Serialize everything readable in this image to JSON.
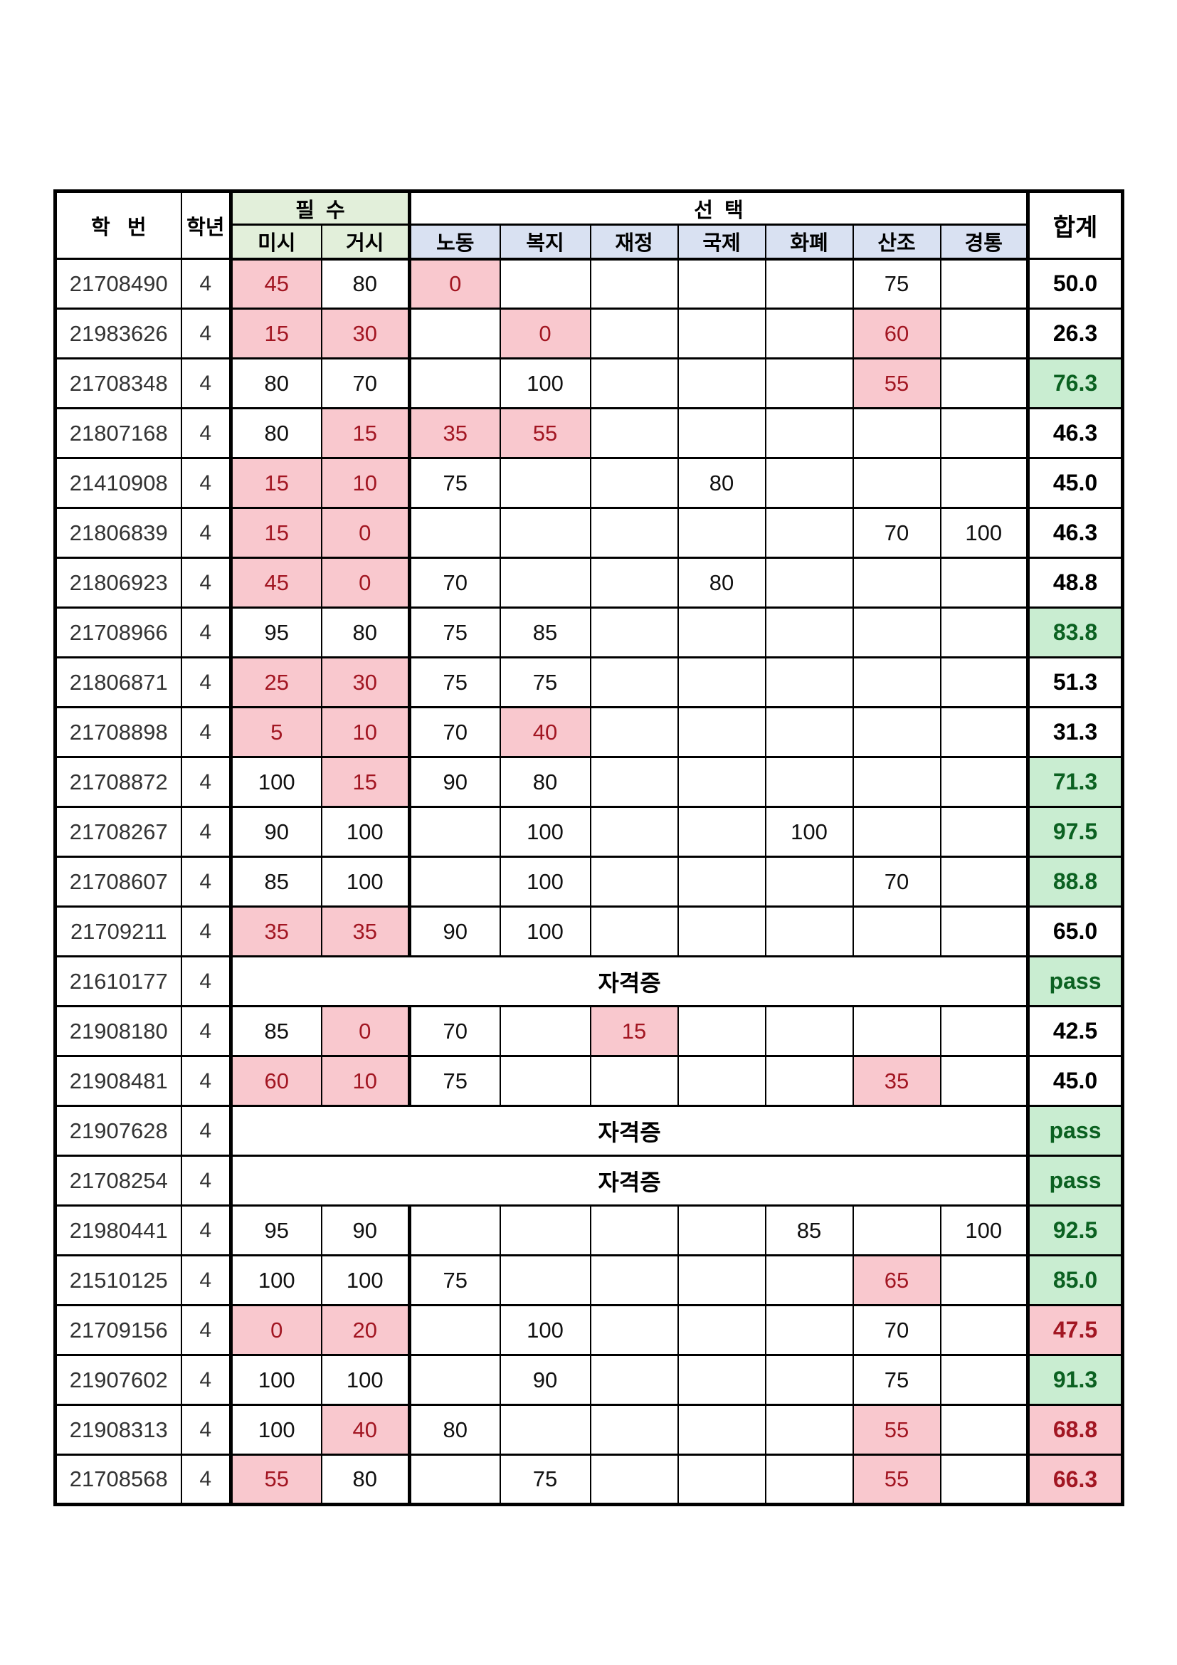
{
  "header": {
    "student_id": "학   번",
    "year": "학년",
    "required_group": "필  수",
    "elective_group": "선  택",
    "total": "합계",
    "required_cols": [
      "미시",
      "거시"
    ],
    "elective_cols": [
      "노동",
      "복지",
      "재정",
      "국제",
      "화폐",
      "산조",
      "경통"
    ]
  },
  "labels": {
    "certificate": "자격증",
    "pass": "pass"
  },
  "colors": {
    "header_required_green": "#E2EFDA",
    "header_elective_blue": "#D9E1F2",
    "fail_cell_bg": "#F9C8CE",
    "fail_cell_text": "#A21622",
    "good_total_bg": "#C9EDD1",
    "good_total_text": "#0B6121",
    "border": "#000000"
  },
  "rows": [
    {
      "id": "21708490",
      "year": "4",
      "scores": [
        {
          "v": "45",
          "bad": true
        },
        {
          "v": "80"
        },
        {
          "v": "0",
          "bad": true
        },
        null,
        null,
        null,
        null,
        {
          "v": "75"
        },
        null
      ],
      "total": {
        "v": "50.0",
        "style": "normal"
      }
    },
    {
      "id": "21983626",
      "year": "4",
      "scores": [
        {
          "v": "15",
          "bad": true
        },
        {
          "v": "30",
          "bad": true
        },
        null,
        {
          "v": "0",
          "bad": true
        },
        null,
        null,
        null,
        {
          "v": "60",
          "bad": true
        },
        null
      ],
      "total": {
        "v": "26.3",
        "style": "normal"
      }
    },
    {
      "id": "21708348",
      "year": "4",
      "scores": [
        {
          "v": "80"
        },
        {
          "v": "70"
        },
        null,
        {
          "v": "100"
        },
        null,
        null,
        null,
        {
          "v": "55",
          "bad": true
        },
        null
      ],
      "total": {
        "v": "76.3",
        "style": "good"
      }
    },
    {
      "id": "21807168",
      "year": "4",
      "scores": [
        {
          "v": "80"
        },
        {
          "v": "15",
          "bad": true
        },
        {
          "v": "35",
          "bad": true
        },
        {
          "v": "55",
          "bad": true
        },
        null,
        null,
        null,
        null,
        null
      ],
      "total": {
        "v": "46.3",
        "style": "normal"
      }
    },
    {
      "id": "21410908",
      "year": "4",
      "scores": [
        {
          "v": "15",
          "bad": true
        },
        {
          "v": "10",
          "bad": true
        },
        {
          "v": "75"
        },
        null,
        null,
        {
          "v": "80"
        },
        null,
        null,
        null
      ],
      "total": {
        "v": "45.0",
        "style": "normal"
      }
    },
    {
      "id": "21806839",
      "year": "4",
      "scores": [
        {
          "v": "15",
          "bad": true
        },
        {
          "v": "0",
          "bad": true
        },
        null,
        null,
        null,
        null,
        null,
        {
          "v": "70"
        },
        {
          "v": "100"
        }
      ],
      "total": {
        "v": "46.3",
        "style": "normal"
      }
    },
    {
      "id": "21806923",
      "year": "4",
      "scores": [
        {
          "v": "45",
          "bad": true
        },
        {
          "v": "0",
          "bad": true
        },
        {
          "v": "70"
        },
        null,
        null,
        {
          "v": "80"
        },
        null,
        null,
        null
      ],
      "total": {
        "v": "48.8",
        "style": "normal"
      }
    },
    {
      "id": "21708966",
      "year": "4",
      "scores": [
        {
          "v": "95"
        },
        {
          "v": "80"
        },
        {
          "v": "75"
        },
        {
          "v": "85"
        },
        null,
        null,
        null,
        null,
        null
      ],
      "total": {
        "v": "83.8",
        "style": "good"
      }
    },
    {
      "id": "21806871",
      "year": "4",
      "scores": [
        {
          "v": "25",
          "bad": true
        },
        {
          "v": "30",
          "bad": true
        },
        {
          "v": "75"
        },
        {
          "v": "75"
        },
        null,
        null,
        null,
        null,
        null
      ],
      "total": {
        "v": "51.3",
        "style": "normal"
      }
    },
    {
      "id": "21708898",
      "year": "4",
      "scores": [
        {
          "v": "5",
          "bad": true
        },
        {
          "v": "10",
          "bad": true
        },
        {
          "v": "70"
        },
        {
          "v": "40",
          "bad": true
        },
        null,
        null,
        null,
        null,
        null
      ],
      "total": {
        "v": "31.3",
        "style": "normal"
      }
    },
    {
      "id": "21708872",
      "year": "4",
      "scores": [
        {
          "v": "100"
        },
        {
          "v": "15",
          "bad": true
        },
        {
          "v": "90"
        },
        {
          "v": "80"
        },
        null,
        null,
        null,
        null,
        null
      ],
      "total": {
        "v": "71.3",
        "style": "good"
      }
    },
    {
      "id": "21708267",
      "year": "4",
      "scores": [
        {
          "v": "90"
        },
        {
          "v": "100"
        },
        null,
        {
          "v": "100"
        },
        null,
        null,
        {
          "v": "100"
        },
        null,
        null
      ],
      "total": {
        "v": "97.5",
        "style": "good"
      }
    },
    {
      "id": "21708607",
      "year": "4",
      "scores": [
        {
          "v": "85"
        },
        {
          "v": "100"
        },
        null,
        {
          "v": "100"
        },
        null,
        null,
        null,
        {
          "v": "70"
        },
        null
      ],
      "total": {
        "v": "88.8",
        "style": "good"
      }
    },
    {
      "id": "21709211",
      "year": "4",
      "scores": [
        {
          "v": "35",
          "bad": true
        },
        {
          "v": "35",
          "bad": true
        },
        {
          "v": "90"
        },
        {
          "v": "100"
        },
        null,
        null,
        null,
        null,
        null
      ],
      "total": {
        "v": "65.0",
        "style": "normal"
      }
    },
    {
      "id": "21610177",
      "year": "4",
      "cert": true,
      "total": {
        "v": "pass",
        "style": "good"
      }
    },
    {
      "id": "21908180",
      "year": "4",
      "scores": [
        {
          "v": "85"
        },
        {
          "v": "0",
          "bad": true
        },
        {
          "v": "70"
        },
        null,
        {
          "v": "15",
          "bad": true
        },
        null,
        null,
        null,
        null
      ],
      "total": {
        "v": "42.5",
        "style": "normal"
      }
    },
    {
      "id": "21908481",
      "year": "4",
      "scores": [
        {
          "v": "60",
          "bad": true
        },
        {
          "v": "10",
          "bad": true
        },
        {
          "v": "75"
        },
        null,
        null,
        null,
        null,
        {
          "v": "35",
          "bad": true
        },
        null
      ],
      "total": {
        "v": "45.0",
        "style": "normal"
      }
    },
    {
      "id": "21907628",
      "year": "4",
      "cert": true,
      "total": {
        "v": "pass",
        "style": "good"
      }
    },
    {
      "id": "21708254",
      "year": "4",
      "cert": true,
      "total": {
        "v": "pass",
        "style": "good"
      }
    },
    {
      "id": "21980441",
      "year": "4",
      "scores": [
        {
          "v": "95"
        },
        {
          "v": "90"
        },
        null,
        null,
        null,
        null,
        {
          "v": "85"
        },
        null,
        {
          "v": "100"
        }
      ],
      "total": {
        "v": "92.5",
        "style": "good"
      }
    },
    {
      "id": "21510125",
      "year": "4",
      "scores": [
        {
          "v": "100"
        },
        {
          "v": "100"
        },
        {
          "v": "75"
        },
        null,
        null,
        null,
        null,
        {
          "v": "65",
          "bad": true
        },
        null
      ],
      "total": {
        "v": "85.0",
        "style": "good"
      }
    },
    {
      "id": "21709156",
      "year": "4",
      "scores": [
        {
          "v": "0",
          "bad": true
        },
        {
          "v": "20",
          "bad": true
        },
        null,
        {
          "v": "100"
        },
        null,
        null,
        null,
        {
          "v": "70"
        },
        null
      ],
      "total": {
        "v": "47.5",
        "style": "bad"
      }
    },
    {
      "id": "21907602",
      "year": "4",
      "scores": [
        {
          "v": "100"
        },
        {
          "v": "100"
        },
        null,
        {
          "v": "90"
        },
        null,
        null,
        null,
        {
          "v": "75"
        },
        null
      ],
      "total": {
        "v": "91.3",
        "style": "good"
      }
    },
    {
      "id": "21908313",
      "year": "4",
      "scores": [
        {
          "v": "100"
        },
        {
          "v": "40",
          "bad": true
        },
        {
          "v": "80"
        },
        null,
        null,
        null,
        null,
        {
          "v": "55",
          "bad": true
        },
        null
      ],
      "total": {
        "v": "68.8",
        "style": "bad"
      }
    },
    {
      "id": "21708568",
      "year": "4",
      "scores": [
        {
          "v": "55",
          "bad": true
        },
        {
          "v": "80"
        },
        null,
        {
          "v": "75"
        },
        null,
        null,
        null,
        {
          "v": "55",
          "bad": true
        },
        null
      ],
      "total": {
        "v": "66.3",
        "style": "bad"
      }
    }
  ]
}
